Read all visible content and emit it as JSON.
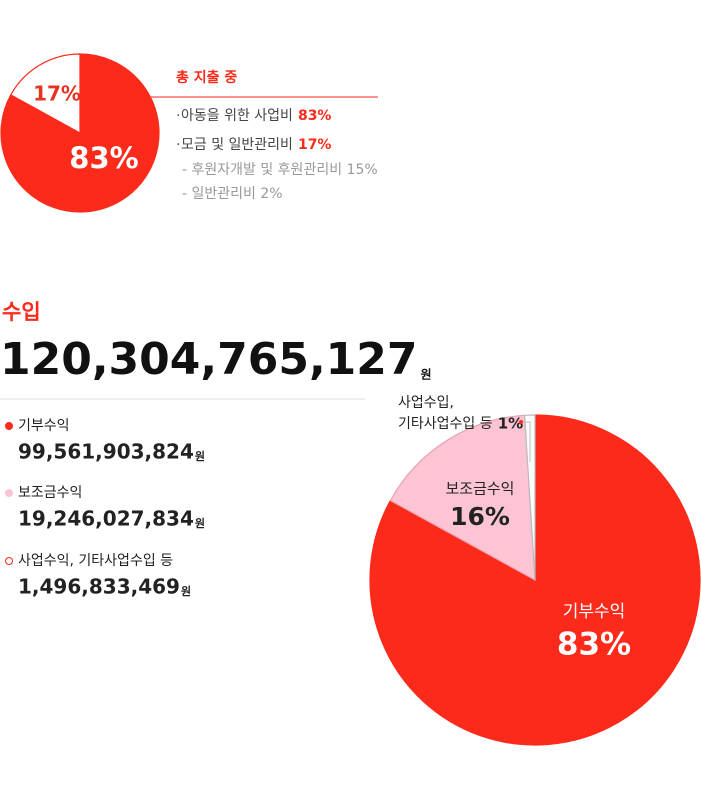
{
  "chart_data": [
    {
      "type": "pie",
      "title": "총 지출 중",
      "categories": [
        "아동을 위한 사업비",
        "모금 및 일반관리비"
      ],
      "values": [
        83,
        17
      ],
      "value_labels": [
        "83%",
        "17%"
      ],
      "colors": [
        "#fc2a1a",
        "#ffffff"
      ]
    },
    {
      "type": "pie",
      "categories": [
        "기부수익",
        "보조금수익",
        "사업수익, 기타사업수입 등"
      ],
      "values": [
        83,
        16,
        1
      ],
      "value_labels": [
        "83%",
        "16%",
        "1%"
      ],
      "colors": [
        "#fc2a1a",
        "#fdc5d3",
        "#ffffff"
      ]
    }
  ],
  "expense_details": [
    "- 후원자개발 및 후원관리비 15%",
    "- 일반관리비 2%"
  ],
  "income": {
    "title": "수입",
    "total": "120,304,765,127",
    "unit": "원",
    "amounts": [
      "99,561,903,824",
      "19,246,027,834",
      "1,496,833,469"
    ],
    "callout": [
      "사업수입,",
      "기타사업수입 등"
    ]
  }
}
